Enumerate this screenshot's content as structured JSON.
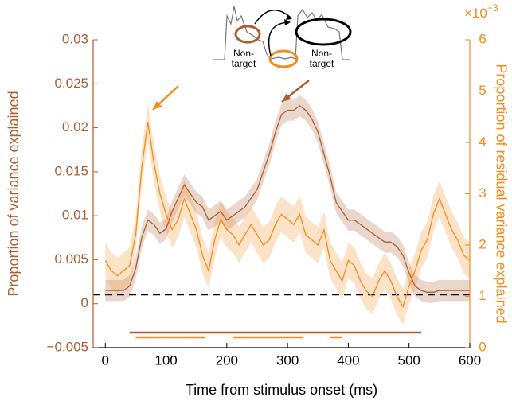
{
  "chart_data": {
    "type": "line",
    "x_label": "Time from stimulus onset (ms)",
    "y_label": "Proportion of variance explained",
    "y2_label": "Proportion of residual variance explained",
    "y2_multiplier": {
      "base": "×10",
      "exponent": "−3"
    },
    "xlim": [
      -20,
      600
    ],
    "xticks": [
      0,
      100,
      200,
      300,
      400,
      500,
      600
    ],
    "ylim": [
      -0.005,
      0.03
    ],
    "yticks": [
      {
        "value": -0.005,
        "label": "−0.005"
      },
      0,
      0.005,
      0.01,
      0.015,
      0.02,
      0.025,
      0.03
    ],
    "y2lim": [
      0,
      6
    ],
    "y2ticks": [
      0,
      1,
      2,
      3,
      4,
      5,
      6
    ],
    "baseline": 0.001,
    "x": [
      0,
      10,
      20,
      30,
      40,
      50,
      60,
      70,
      80,
      90,
      100,
      110,
      120,
      130,
      140,
      150,
      160,
      170,
      180,
      190,
      200,
      210,
      220,
      230,
      240,
      250,
      260,
      270,
      280,
      290,
      300,
      310,
      320,
      330,
      340,
      350,
      360,
      370,
      380,
      390,
      400,
      410,
      420,
      430,
      440,
      450,
      460,
      470,
      480,
      490,
      500,
      510,
      520,
      530,
      540,
      550,
      560,
      570,
      580,
      590,
      600
    ],
    "series": [
      {
        "color": "#ad5f32",
        "error": 0.0012,
        "values": [
          0.0015,
          0.0015,
          0.0015,
          0.0015,
          0.002,
          0.004,
          0.0075,
          0.0095,
          0.009,
          0.008,
          0.0085,
          0.0105,
          0.012,
          0.0135,
          0.0125,
          0.0115,
          0.011,
          0.0095,
          0.01,
          0.0105,
          0.0095,
          0.01,
          0.0105,
          0.011,
          0.012,
          0.013,
          0.015,
          0.017,
          0.0195,
          0.0215,
          0.022,
          0.022,
          0.0225,
          0.022,
          0.021,
          0.0195,
          0.017,
          0.0145,
          0.0115,
          0.0105,
          0.0095,
          0.0095,
          0.009,
          0.0085,
          0.008,
          0.0075,
          0.007,
          0.007,
          0.0065,
          0.0055,
          0.0035,
          0.002,
          0.0015,
          0.0013,
          0.0013,
          0.0015,
          0.0015,
          0.0015,
          0.0015,
          0.0015,
          0.0015
        ]
      },
      {
        "color": "#f28c1e",
        "axis": "y2",
        "error": 0.35,
        "values": [
          1.7,
          1.5,
          1.4,
          1.5,
          1.6,
          2.2,
          3.5,
          4.4,
          3.6,
          3.0,
          2.6,
          2.3,
          2.5,
          2.9,
          2.6,
          2.3,
          1.8,
          1.5,
          2.1,
          2.5,
          2.3,
          2.2,
          2.0,
          2.2,
          2.4,
          2.2,
          2.0,
          2.1,
          2.4,
          2.6,
          2.5,
          2.4,
          2.6,
          2.2,
          2.1,
          2.0,
          2.3,
          1.7,
          1.5,
          1.3,
          1.7,
          1.6,
          1.3,
          1.1,
          1.0,
          1.3,
          1.5,
          1.3,
          1.0,
          0.8,
          1.2,
          1.5,
          1.9,
          2.1,
          2.6,
          2.9,
          2.6,
          2.3,
          2.1,
          1.8,
          1.7
        ]
      }
    ],
    "significance": [
      {
        "series": 0,
        "intervals": [
          [
            40,
            520
          ]
        ]
      },
      {
        "series": 1,
        "intervals": [
          [
            50,
            165
          ],
          [
            210,
            325
          ],
          [
            370,
            390
          ]
        ]
      }
    ],
    "inset_labels": [
      [
        "Non-",
        "target"
      ],
      [
        "Non-",
        "target"
      ]
    ]
  }
}
